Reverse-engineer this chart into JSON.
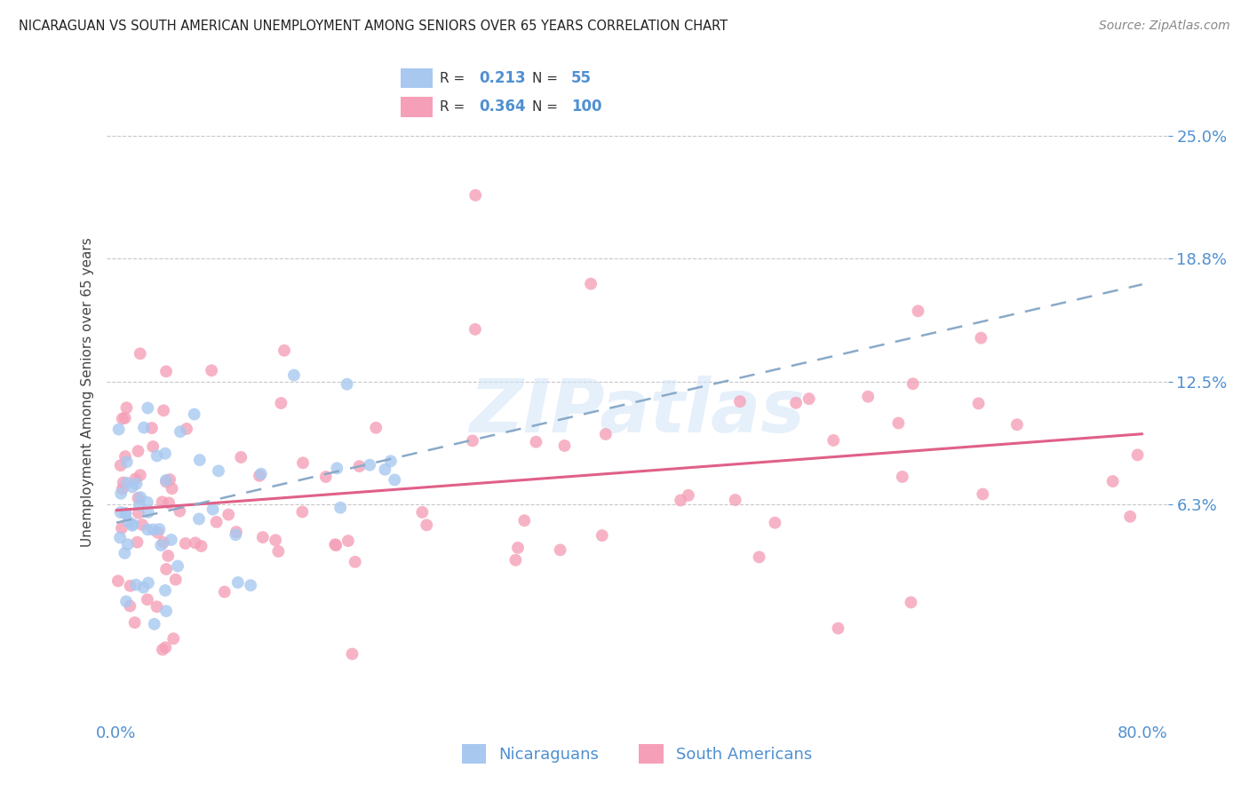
{
  "title": "NICARAGUAN VS SOUTH AMERICAN UNEMPLOYMENT AMONG SENIORS OVER 65 YEARS CORRELATION CHART",
  "source": "Source: ZipAtlas.com",
  "ylabel": "Unemployment Among Seniors over 65 years",
  "xlim": [
    -0.008,
    0.82
  ],
  "ylim": [
    -0.045,
    0.285
  ],
  "ytick_vals": [
    0.063,
    0.125,
    0.188,
    0.25
  ],
  "ytick_labels": [
    "6.3%",
    "12.5%",
    "18.8%",
    "25.0%"
  ],
  "xtick_vals": [
    0.0,
    0.8
  ],
  "xtick_labels": [
    "0.0%",
    "80.0%"
  ],
  "legend_R1": "0.213",
  "legend_N1": "55",
  "legend_R2": "0.364",
  "legend_N2": "100",
  "color_nicaraguan": "#A8C8F0",
  "color_south_american": "#F5A0B8",
  "color_line_nic": "#8aaac8",
  "color_line_sa": "#E06088",
  "color_text_blue": "#5090D0",
  "color_grid": "#C8C8C8",
  "marker_size": 100
}
